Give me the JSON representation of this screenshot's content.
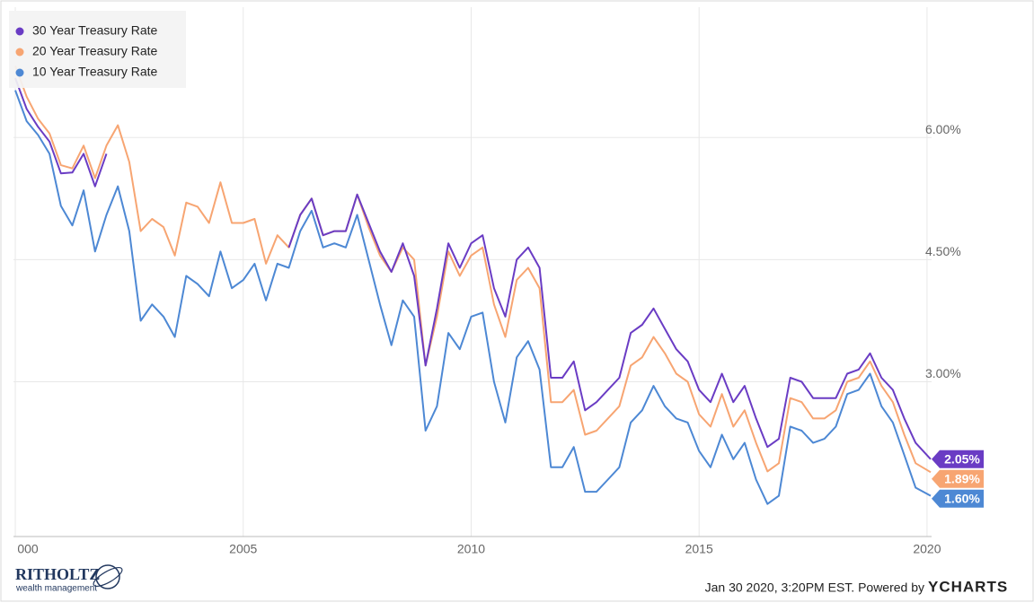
{
  "chart_data": {
    "type": "line",
    "x": [
      2000,
      2000.25,
      2000.5,
      2000.75,
      2001,
      2001.25,
      2001.5,
      2001.75,
      2002,
      2002.25,
      2002.5,
      2002.75,
      2003,
      2003.25,
      2003.5,
      2003.75,
      2004,
      2004.25,
      2004.5,
      2004.75,
      2005,
      2005.25,
      2005.5,
      2005.75,
      2006,
      2006.25,
      2006.5,
      2006.75,
      2007,
      2007.25,
      2007.5,
      2007.75,
      2008,
      2008.25,
      2008.5,
      2008.75,
      2009,
      2009.25,
      2009.5,
      2009.75,
      2010,
      2010.25,
      2010.5,
      2010.75,
      2011,
      2011.25,
      2011.5,
      2011.75,
      2012,
      2012.25,
      2012.5,
      2012.75,
      2013,
      2013.25,
      2013.5,
      2013.75,
      2014,
      2014.25,
      2014.5,
      2014.75,
      2015,
      2015.25,
      2015.5,
      2015.75,
      2016,
      2016.25,
      2016.5,
      2016.75,
      2017,
      2017.25,
      2017.5,
      2017.75,
      2018,
      2018.25,
      2018.5,
      2018.75,
      2019,
      2019.25,
      2019.5,
      2019.75,
      2020.08
    ],
    "series": [
      {
        "name": "30 Year Treasury Rate",
        "color": "#6a3cc4",
        "value_label": "2.05%",
        "values": [
          6.73,
          6.35,
          6.13,
          5.95,
          5.56,
          5.57,
          5.8,
          5.4,
          5.8,
          null,
          null,
          null,
          null,
          null,
          null,
          null,
          null,
          null,
          null,
          null,
          null,
          null,
          null,
          null,
          4.65,
          5.05,
          5.25,
          4.8,
          4.85,
          4.85,
          5.3,
          4.95,
          4.6,
          4.35,
          4.7,
          4.3,
          3.2,
          3.9,
          4.7,
          4.4,
          4.7,
          4.8,
          4.15,
          3.8,
          4.5,
          4.65,
          4.4,
          3.05,
          3.05,
          3.25,
          2.65,
          2.75,
          2.9,
          3.05,
          3.6,
          3.7,
          3.9,
          3.65,
          3.4,
          3.25,
          2.9,
          2.75,
          3.1,
          2.75,
          2.95,
          2.55,
          2.2,
          2.3,
          3.05,
          3.0,
          2.8,
          2.8,
          2.8,
          3.1,
          3.15,
          3.35,
          3.05,
          2.9,
          2.55,
          2.25,
          2.05
        ]
      },
      {
        "name": "20 Year Treasury Rate",
        "color": "#f7a572",
        "value_label": "1.89%",
        "values": [
          6.88,
          6.5,
          6.23,
          6.05,
          5.66,
          5.62,
          5.9,
          5.5,
          5.9,
          6.15,
          5.7,
          4.85,
          5.0,
          4.9,
          4.55,
          5.2,
          5.15,
          4.95,
          5.45,
          4.95,
          4.95,
          5.0,
          4.45,
          4.8,
          4.65,
          5.05,
          5.25,
          4.8,
          4.85,
          4.85,
          5.3,
          4.9,
          4.55,
          4.35,
          4.65,
          4.5,
          3.2,
          3.8,
          4.6,
          4.3,
          4.55,
          4.65,
          3.95,
          3.55,
          4.25,
          4.4,
          4.15,
          2.75,
          2.75,
          2.9,
          2.35,
          2.4,
          2.55,
          2.7,
          3.2,
          3.3,
          3.55,
          3.35,
          3.1,
          3.0,
          2.6,
          2.45,
          2.85,
          2.45,
          2.65,
          2.25,
          1.9,
          2.0,
          2.8,
          2.75,
          2.55,
          2.55,
          2.65,
          3.0,
          3.05,
          3.25,
          2.95,
          2.75,
          2.35,
          2.0,
          1.89
        ]
      },
      {
        "name": "10 Year Treasury Rate",
        "color": "#4d88d4",
        "value_label": "1.60%",
        "values": [
          6.58,
          6.2,
          6.03,
          5.8,
          5.16,
          4.92,
          5.35,
          4.6,
          5.05,
          5.4,
          4.85,
          3.75,
          3.95,
          3.8,
          3.55,
          4.3,
          4.2,
          4.05,
          4.6,
          4.15,
          4.25,
          4.45,
          4.0,
          4.45,
          4.4,
          4.85,
          5.1,
          4.65,
          4.7,
          4.65,
          5.05,
          4.5,
          3.95,
          3.45,
          4.0,
          3.8,
          2.4,
          2.7,
          3.6,
          3.4,
          3.8,
          3.85,
          3.0,
          2.5,
          3.3,
          3.5,
          3.15,
          1.95,
          1.95,
          2.2,
          1.65,
          1.65,
          1.8,
          1.95,
          2.5,
          2.65,
          2.95,
          2.7,
          2.55,
          2.5,
          2.15,
          1.95,
          2.35,
          2.05,
          2.25,
          1.8,
          1.5,
          1.6,
          2.45,
          2.4,
          2.25,
          2.3,
          2.45,
          2.85,
          2.9,
          3.1,
          2.7,
          2.5,
          2.1,
          1.7,
          1.6
        ]
      }
    ],
    "xlim": [
      1999.96,
      2020.1
    ],
    "ylim": [
      1.1,
      7.6
    ],
    "xticks": [
      {
        "value": 2000,
        "label": "000"
      },
      2005,
      2010,
      2015,
      2020
    ],
    "yticks": [
      {
        "value": 3,
        "label": "3.00%"
      },
      {
        "value": 4.5,
        "label": "4.50%"
      },
      {
        "value": 6,
        "label": "6.00%"
      }
    ],
    "grid": true,
    "legend": "upper left",
    "footer": {
      "logo": "RITHOLTZ",
      "logo_sub": "wealth management",
      "timestamp": "Jan 30 2020, 3:20PM EST. Powered by",
      "brand": "YCHARTS"
    }
  }
}
